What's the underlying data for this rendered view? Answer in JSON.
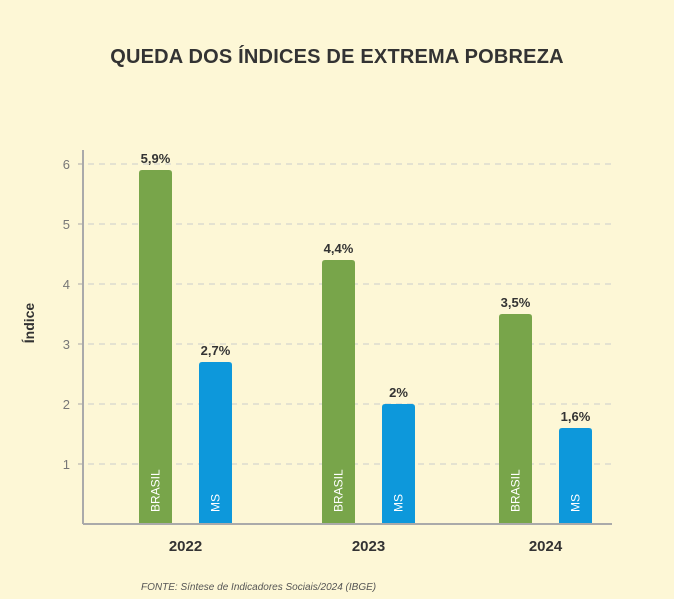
{
  "title": "QUEDA DOS ÍNDICES DE EXTREMA POBREZA",
  "source": "FONTE: Síntese de Indicadores Sociais/2024 (IBGE)",
  "colors": {
    "brasil": "#78a54a",
    "ms": "#0d98db",
    "axis": "#aaaaaa",
    "grid": "#cccccc",
    "text": "#333333"
  },
  "chart_data": {
    "type": "bar",
    "title": "QUEDA DOS ÍNDICES DE EXTREMA POBREZA",
    "xlabel": "",
    "ylabel": "Índice",
    "ylim": [
      0,
      6
    ],
    "yticks": [
      "1",
      "2",
      "3",
      "4",
      "5",
      "6"
    ],
    "categories": [
      "2022",
      "2023",
      "2024"
    ],
    "grid": true,
    "series": [
      {
        "name": "BRASIL",
        "values": [
          5.9,
          4.4,
          3.5
        ],
        "labels": [
          "5,9%",
          "4,4%",
          "3,5%"
        ]
      },
      {
        "name": "MS",
        "values": [
          2.7,
          2.0,
          1.6
        ],
        "labels": [
          "2,7%",
          "2%",
          "1,6%"
        ]
      }
    ]
  }
}
